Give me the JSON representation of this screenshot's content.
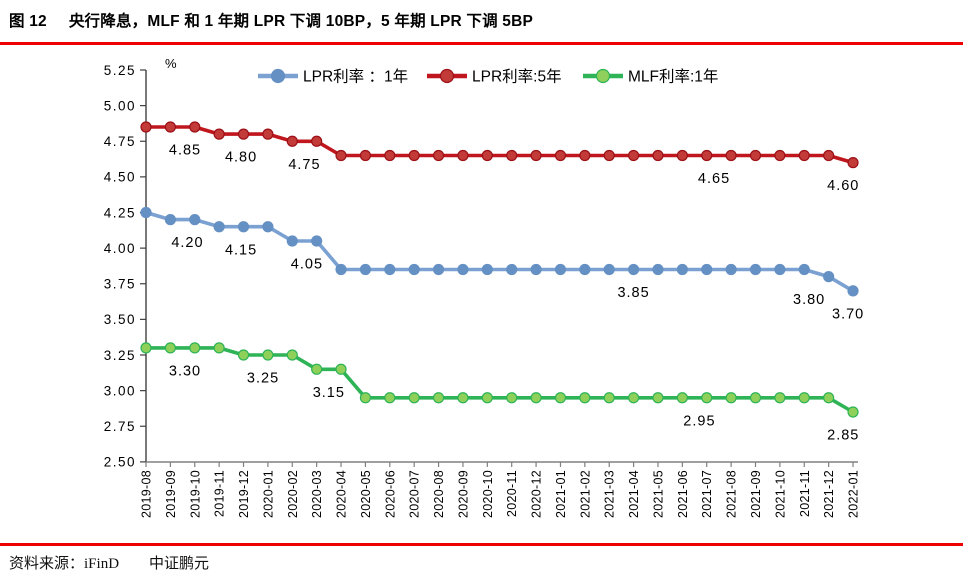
{
  "header": {
    "figure_no": "图 12",
    "title": "央行降息，MLF 和 1 年期 LPR 下调 10BP，5 年期 LPR 下调 5BP"
  },
  "footer": {
    "source_label": "资料来源：",
    "source_1": "iFinD",
    "source_2": "中证鹏元"
  },
  "colors": {
    "accent_rule": "#ee0000",
    "y_axis": "#404040",
    "x_axis": "#808080",
    "label_text": "#000000"
  },
  "chart_data": {
    "type": "line",
    "title": "央行降息，MLF 和 1 年期 LPR 下调 10BP，5 年期 LPR 下调 5BP",
    "unit_label": "%",
    "ylim": [
      2.5,
      5.25
    ],
    "ytick_step": 0.25,
    "grid": false,
    "legend_position": "top",
    "categories": [
      "2019-08",
      "2019-09",
      "2019-10",
      "2019-11",
      "2019-12",
      "2020-01",
      "2020-02",
      "2020-03",
      "2020-04",
      "2020-05",
      "2020-06",
      "2020-07",
      "2020-08",
      "2020-09",
      "2020-10",
      "2020-11",
      "2020-12",
      "2021-01",
      "2021-02",
      "2021-03",
      "2021-04",
      "2021-05",
      "2021-06",
      "2021-07",
      "2021-08",
      "2021-09",
      "2021-10",
      "2021-11",
      "2021-12",
      "2022-01"
    ],
    "series": [
      {
        "name": "LPR利率 ：1年",
        "line_color": "#7AA1D2",
        "marker_fill": "#6590C3",
        "marker_stroke": "#6590C3",
        "values": [
          4.25,
          4.2,
          4.2,
          4.15,
          4.15,
          4.15,
          4.05,
          4.05,
          3.85,
          3.85,
          3.85,
          3.85,
          3.85,
          3.85,
          3.85,
          3.85,
          3.85,
          3.85,
          3.85,
          3.85,
          3.85,
          3.85,
          3.85,
          3.85,
          3.85,
          3.85,
          3.85,
          3.85,
          3.8,
          3.7
        ],
        "point_labels": [
          {
            "text": "4.20",
            "x": 1.7,
            "value": 4.2
          },
          {
            "text": "4.15",
            "x": 3.9,
            "value": 4.15
          },
          {
            "text": "4.05",
            "x": 6.6,
            "value": 4.05
          },
          {
            "text": "3.85",
            "x": 20.0,
            "value": 3.85
          },
          {
            "text": "3.80",
            "x": 27.2,
            "value": 3.8
          },
          {
            "text": "3.70",
            "x": 28.8,
            "value": 3.7
          }
        ]
      },
      {
        "name": "LPR利率:5年",
        "line_color": "#C0161D",
        "marker_fill": "#C23B38",
        "marker_stroke": "#9C1016",
        "values": [
          4.85,
          4.85,
          4.85,
          4.8,
          4.8,
          4.8,
          4.75,
          4.75,
          4.65,
          4.65,
          4.65,
          4.65,
          4.65,
          4.65,
          4.65,
          4.65,
          4.65,
          4.65,
          4.65,
          4.65,
          4.65,
          4.65,
          4.65,
          4.65,
          4.65,
          4.65,
          4.65,
          4.65,
          4.65,
          4.6
        ],
        "point_labels": [
          {
            "text": "4.85",
            "x": 1.6,
            "value": 4.85
          },
          {
            "text": "4.80",
            "x": 3.9,
            "value": 4.8
          },
          {
            "text": "4.75",
            "x": 6.5,
            "value": 4.75
          },
          {
            "text": "4.65",
            "x": 23.3,
            "value": 4.65
          },
          {
            "text": "4.60",
            "x": 28.6,
            "value": 4.6
          }
        ]
      },
      {
        "name": "MLF利率:1年",
        "line_color": "#2EB457",
        "marker_fill": "#8ED05A",
        "marker_stroke": "#2EB457",
        "values": [
          3.3,
          3.3,
          3.3,
          3.3,
          3.25,
          3.25,
          3.25,
          3.15,
          3.15,
          2.95,
          2.95,
          2.95,
          2.95,
          2.95,
          2.95,
          2.95,
          2.95,
          2.95,
          2.95,
          2.95,
          2.95,
          2.95,
          2.95,
          2.95,
          2.95,
          2.95,
          2.95,
          2.95,
          2.95,
          2.85
        ],
        "point_labels": [
          {
            "text": "3.30",
            "x": 1.6,
            "value": 3.3
          },
          {
            "text": "3.25",
            "x": 4.8,
            "value": 3.25
          },
          {
            "text": "3.15",
            "x": 7.5,
            "value": 3.15
          },
          {
            "text": "2.95",
            "x": 22.7,
            "value": 2.95
          },
          {
            "text": "2.85",
            "x": 28.6,
            "value": 2.85
          }
        ]
      }
    ]
  }
}
